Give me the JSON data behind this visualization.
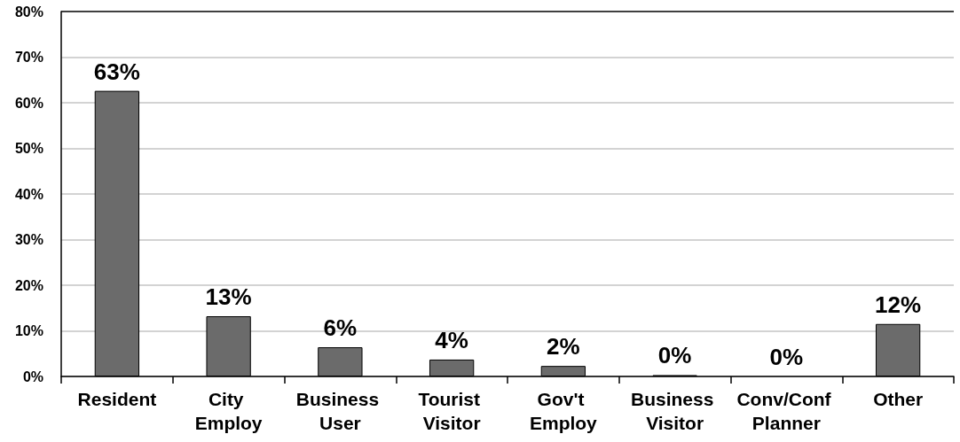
{
  "chart_data": {
    "type": "bar",
    "categories": [
      "Resident",
      "City Employ",
      "Business User",
      "Tourist Visitor",
      "Gov't Employ",
      "Business Visitor",
      "Conv/Conf Planner",
      "Other"
    ],
    "values": [
      62.6,
      13.2,
      6.4,
      3.7,
      2.3,
      0.3,
      0,
      11.5
    ],
    "value_labels": [
      "63%",
      "13%",
      "6%",
      "4%",
      "2%",
      "0%",
      "0%",
      "12%"
    ],
    "color": "#6b6b6b",
    "ylim": [
      0,
      80
    ],
    "yticks": [
      {
        "value": 0,
        "label": "0%"
      },
      {
        "value": 10,
        "label": "10%"
      },
      {
        "value": 20,
        "label": "20%"
      },
      {
        "value": 30,
        "label": "30%"
      },
      {
        "value": 40,
        "label": "40%"
      },
      {
        "value": 50,
        "label": "50%"
      },
      {
        "value": 60,
        "label": "60%"
      },
      {
        "value": 70,
        "label": "70%"
      },
      {
        "value": 80,
        "label": "80%"
      }
    ],
    "grid": "y"
  }
}
